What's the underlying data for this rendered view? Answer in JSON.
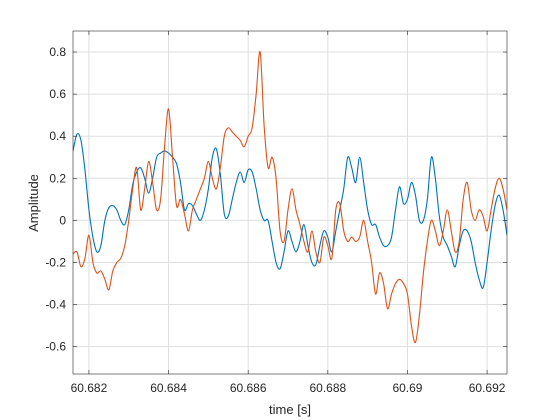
{
  "chart_data": {
    "type": "line",
    "title": "",
    "xlabel": "time [s]",
    "ylabel": "Amplitude",
    "xlim": [
      60.6816,
      60.6925
    ],
    "ylim": [
      -0.73,
      0.9
    ],
    "grid": true,
    "legend": "none",
    "x_ticks": [
      60.682,
      60.684,
      60.686,
      60.688,
      60.69,
      60.692
    ],
    "x_tick_labels": [
      "60.682",
      "60.684",
      "60.686",
      "60.688",
      "60.69",
      "60.692"
    ],
    "y_ticks": [
      -0.6,
      -0.4,
      -0.2,
      0,
      0.2,
      0.4,
      0.6,
      0.8
    ],
    "y_tick_labels": [
      "-0.6",
      "-0.4",
      "-0.2",
      "0",
      "0.2",
      "0.4",
      "0.6",
      "0.8"
    ],
    "series": [
      {
        "color": "#0072BD",
        "points": [
          [
            60.6816,
            0.33
          ],
          [
            60.6817,
            0.41
          ],
          [
            60.6818,
            0.38
          ],
          [
            60.6819,
            0.24
          ],
          [
            60.682,
            0.05
          ],
          [
            60.6821,
            -0.08
          ],
          [
            60.6822,
            -0.15
          ],
          [
            60.6823,
            -0.12
          ],
          [
            60.6824,
            0.0
          ],
          [
            60.6825,
            0.06
          ],
          [
            60.6826,
            0.07
          ],
          [
            60.6827,
            0.05
          ],
          [
            60.6828,
            0.0
          ],
          [
            60.6829,
            -0.02
          ],
          [
            60.683,
            0.05
          ],
          [
            60.6831,
            0.17
          ],
          [
            60.6832,
            0.23
          ],
          [
            60.6833,
            0.25
          ],
          [
            60.6834,
            0.2
          ],
          [
            60.6835,
            0.13
          ],
          [
            60.6836,
            0.2
          ],
          [
            60.6837,
            0.3
          ],
          [
            60.6838,
            0.32
          ],
          [
            60.6839,
            0.33
          ],
          [
            60.684,
            0.32
          ],
          [
            60.6841,
            0.3
          ],
          [
            60.6842,
            0.27
          ],
          [
            60.6843,
            0.18
          ],
          [
            60.6844,
            0.05
          ],
          [
            60.6845,
            0.08
          ],
          [
            60.6846,
            0.07
          ],
          [
            60.6847,
            0.03
          ],
          [
            60.6848,
            0.0
          ],
          [
            60.6849,
            0.05
          ],
          [
            60.685,
            0.15
          ],
          [
            60.6851,
            0.3
          ],
          [
            60.6852,
            0.34
          ],
          [
            60.6853,
            0.22
          ],
          [
            60.6854,
            0.03
          ],
          [
            60.6855,
            0.02
          ],
          [
            60.6856,
            0.1
          ],
          [
            60.6857,
            0.18
          ],
          [
            60.6858,
            0.23
          ],
          [
            60.6859,
            0.18
          ],
          [
            60.686,
            0.24
          ],
          [
            60.6861,
            0.23
          ],
          [
            60.6862,
            0.15
          ],
          [
            60.6863,
            0.05
          ],
          [
            60.6864,
            0.0
          ],
          [
            60.6865,
            0.0
          ],
          [
            60.6866,
            -0.1
          ],
          [
            60.6867,
            -0.2
          ],
          [
            60.6868,
            -0.23
          ],
          [
            60.6869,
            -0.15
          ],
          [
            60.687,
            -0.05
          ],
          [
            60.6871,
            -0.1
          ],
          [
            60.6872,
            -0.15
          ],
          [
            60.6873,
            -0.1
          ],
          [
            60.6874,
            -0.02
          ],
          [
            60.6875,
            -0.12
          ],
          [
            60.6876,
            -0.2
          ],
          [
            60.6877,
            -0.21
          ],
          [
            60.6878,
            -0.12
          ],
          [
            60.6879,
            -0.05
          ],
          [
            60.688,
            -0.08
          ],
          [
            60.6881,
            -0.15
          ],
          [
            60.6882,
            -0.05
          ],
          [
            60.6883,
            0.05
          ],
          [
            60.6884,
            0.15
          ],
          [
            60.6885,
            0.3
          ],
          [
            60.6886,
            0.25
          ],
          [
            60.6887,
            0.18
          ],
          [
            60.6888,
            0.3
          ],
          [
            60.6889,
            0.18
          ],
          [
            60.689,
            0.05
          ],
          [
            60.6891,
            -0.02
          ],
          [
            60.6892,
            -0.02
          ],
          [
            60.6893,
            -0.08
          ],
          [
            60.6894,
            -0.12
          ],
          [
            60.6895,
            -0.12
          ],
          [
            60.6896,
            -0.08
          ],
          [
            60.6897,
            0.05
          ],
          [
            60.6898,
            0.16
          ],
          [
            60.6899,
            0.08
          ],
          [
            60.69,
            0.1
          ],
          [
            60.6901,
            0.18
          ],
          [
            60.6902,
            0.12
          ],
          [
            60.6903,
            0.0
          ],
          [
            60.6904,
            0.0
          ],
          [
            60.6905,
            0.1
          ],
          [
            60.6906,
            0.3
          ],
          [
            60.6907,
            0.2
          ],
          [
            60.6908,
            0.02
          ],
          [
            60.6909,
            -0.08
          ],
          [
            60.691,
            -0.12
          ],
          [
            60.6911,
            -0.17
          ],
          [
            60.6912,
            -0.22
          ],
          [
            60.6913,
            -0.12
          ],
          [
            60.6914,
            -0.05
          ],
          [
            60.6915,
            -0.05
          ],
          [
            60.6916,
            -0.1
          ],
          [
            60.6917,
            -0.2
          ],
          [
            60.6918,
            -0.28
          ],
          [
            60.6919,
            -0.32
          ],
          [
            60.692,
            -0.2
          ],
          [
            60.6921,
            -0.05
          ],
          [
            60.6922,
            0.07
          ],
          [
            60.6923,
            0.12
          ],
          [
            60.6924,
            0.05
          ],
          [
            60.6925,
            -0.07
          ]
        ]
      },
      {
        "color": "#D95319",
        "points": [
          [
            60.6816,
            -0.16
          ],
          [
            60.6817,
            -0.15
          ],
          [
            60.6818,
            -0.22
          ],
          [
            60.6819,
            -0.18
          ],
          [
            60.682,
            -0.07
          ],
          [
            60.6821,
            -0.2
          ],
          [
            60.6822,
            -0.25
          ],
          [
            60.6823,
            -0.24
          ],
          [
            60.6824,
            -0.28
          ],
          [
            60.6825,
            -0.33
          ],
          [
            60.6826,
            -0.24
          ],
          [
            60.6827,
            -0.2
          ],
          [
            60.6828,
            -0.18
          ],
          [
            60.6829,
            -0.12
          ],
          [
            60.683,
            0.0
          ],
          [
            60.6831,
            0.15
          ],
          [
            60.6832,
            0.25
          ],
          [
            60.6833,
            0.05
          ],
          [
            60.6834,
            0.15
          ],
          [
            60.6835,
            0.28
          ],
          [
            60.6836,
            0.18
          ],
          [
            60.6837,
            0.05
          ],
          [
            60.6838,
            0.1
          ],
          [
            60.6839,
            0.35
          ],
          [
            60.684,
            0.53
          ],
          [
            60.6841,
            0.3
          ],
          [
            60.6842,
            0.07
          ],
          [
            60.6843,
            0.1
          ],
          [
            60.6844,
            0.03
          ],
          [
            60.6845,
            -0.05
          ],
          [
            60.6846,
            0.05
          ],
          [
            60.6847,
            0.1
          ],
          [
            60.6848,
            0.15
          ],
          [
            60.6849,
            0.2
          ],
          [
            60.685,
            0.28
          ],
          [
            60.6851,
            0.2
          ],
          [
            60.6852,
            0.15
          ],
          [
            60.6853,
            0.25
          ],
          [
            60.6854,
            0.4
          ],
          [
            60.6855,
            0.44
          ],
          [
            60.6856,
            0.42
          ],
          [
            60.6857,
            0.4
          ],
          [
            60.6858,
            0.38
          ],
          [
            60.6859,
            0.35
          ],
          [
            60.686,
            0.4
          ],
          [
            60.6861,
            0.44
          ],
          [
            60.6862,
            0.6
          ],
          [
            60.6863,
            0.8
          ],
          [
            60.6864,
            0.45
          ],
          [
            60.6865,
            0.25
          ],
          [
            60.6866,
            0.3
          ],
          [
            60.6867,
            0.2
          ],
          [
            60.6868,
            -0.05
          ],
          [
            60.6869,
            -0.1
          ],
          [
            60.687,
            0.05
          ],
          [
            60.6871,
            0.15
          ],
          [
            60.6872,
            0.05
          ],
          [
            60.6873,
            -0.02
          ],
          [
            60.6874,
            -0.1
          ],
          [
            60.6875,
            -0.15
          ],
          [
            60.6876,
            -0.05
          ],
          [
            60.6877,
            -0.15
          ],
          [
            60.6878,
            -0.2
          ],
          [
            60.6879,
            -0.08
          ],
          [
            60.688,
            -0.12
          ],
          [
            60.6881,
            -0.18
          ],
          [
            60.6882,
            0.05
          ],
          [
            60.6883,
            0.08
          ],
          [
            60.6884,
            -0.05
          ],
          [
            60.6885,
            -0.1
          ],
          [
            60.6886,
            -0.08
          ],
          [
            60.6887,
            -0.1
          ],
          [
            60.6888,
            -0.08
          ],
          [
            60.6889,
            0.0
          ],
          [
            60.689,
            -0.1
          ],
          [
            60.6891,
            -0.2
          ],
          [
            60.6892,
            -0.35
          ],
          [
            60.6893,
            -0.25
          ],
          [
            60.6894,
            -0.3
          ],
          [
            60.6895,
            -0.42
          ],
          [
            60.6896,
            -0.35
          ],
          [
            60.6897,
            -0.3
          ],
          [
            60.6898,
            -0.28
          ],
          [
            60.6899,
            -0.3
          ],
          [
            60.69,
            -0.35
          ],
          [
            60.6901,
            -0.5
          ],
          [
            60.6902,
            -0.58
          ],
          [
            60.6903,
            -0.45
          ],
          [
            60.6904,
            -0.25
          ],
          [
            60.6905,
            -0.1
          ],
          [
            60.6906,
            0.0
          ],
          [
            60.6907,
            -0.05
          ],
          [
            60.6908,
            -0.12
          ],
          [
            60.6909,
            -0.05
          ],
          [
            60.691,
            0.05
          ],
          [
            60.6911,
            -0.05
          ],
          [
            60.6912,
            -0.15
          ],
          [
            60.6913,
            -0.1
          ],
          [
            60.6914,
            0.1
          ],
          [
            60.6915,
            0.18
          ],
          [
            60.6916,
            0.05
          ],
          [
            60.6917,
            0.0
          ],
          [
            60.6918,
            0.05
          ],
          [
            60.6919,
            0.02
          ],
          [
            60.692,
            -0.05
          ],
          [
            60.6921,
            0.05
          ],
          [
            60.6922,
            0.15
          ],
          [
            60.6923,
            0.2
          ],
          [
            60.6924,
            0.15
          ],
          [
            60.6925,
            0.05
          ]
        ]
      }
    ]
  }
}
